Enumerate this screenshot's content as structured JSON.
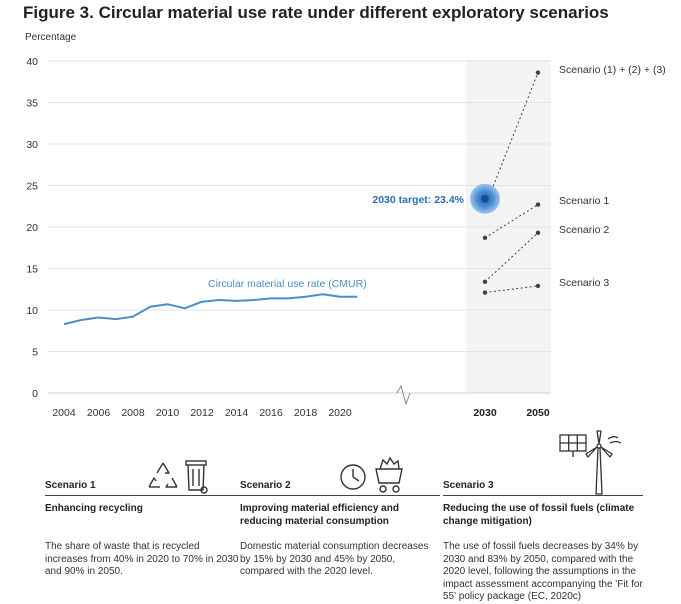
{
  "figure_title": "Figure 3. Circular material use rate under different exploratory scenarios",
  "chart_data": {
    "type": "line",
    "title": "Figure 3. Circular material use rate under different exploratory scenarios",
    "ylabel": "Percentage",
    "ylim": [
      0,
      40
    ],
    "yticks": [
      0,
      5,
      10,
      15,
      20,
      25,
      30,
      35,
      40
    ],
    "historical": {
      "name": "Circular material use rate (CMUR)",
      "color": "#4a90c4",
      "x": [
        2004,
        2005,
        2006,
        2007,
        2008,
        2009,
        2010,
        2011,
        2012,
        2013,
        2014,
        2015,
        2016,
        2017,
        2018,
        2019,
        2020,
        2021
      ],
      "y": [
        8.3,
        8.8,
        9.1,
        8.9,
        9.2,
        10.4,
        10.7,
        10.2,
        11.0,
        11.2,
        11.1,
        11.2,
        11.4,
        11.4,
        11.6,
        11.9,
        11.6,
        11.6
      ]
    },
    "hist_xticks": [
      "2004",
      "2006",
      "2008",
      "2010",
      "2012",
      "2014",
      "2016",
      "2018",
      "2020"
    ],
    "proj_xticks": [
      "2030",
      "2050"
    ],
    "scenarios": [
      {
        "name": "Scenario (1) + (2) + (3)",
        "y2030": 22.4,
        "y2050": 38.6
      },
      {
        "name": "Scenario 1",
        "y2030": 18.7,
        "y2050": 22.7
      },
      {
        "name": "Scenario 2",
        "y2030": 13.4,
        "y2050": 19.3
      },
      {
        "name": "Scenario 3",
        "y2030": 12.1,
        "y2050": 12.9
      }
    ],
    "target": {
      "label": "2030 target: 23.4%",
      "year": 2030,
      "value": 23.4
    }
  },
  "cards": [
    {
      "name": "Scenario 1",
      "subtitle": "Enhancing recycling",
      "body": "The share of waste that is recycled increases from 40% in 2020 to 70% in 2030 and 90% in 2050."
    },
    {
      "name": "Scenario 2",
      "subtitle": "Improving material efficiency and reducing material consumption",
      "body": "Domestic material consumption decreases by 15% by 2030 and 45% by 2050, compared with the 2020 level."
    },
    {
      "name": "Scenario 3",
      "subtitle": "Reducing the use of fossil fuels (climate change mitigation)",
      "body": "The use of fossil fuels decreases by 34% by 2030 and 83% by 2050, compared with the 2020 level, following the assumptions in the impact assessment accompanying the 'Fit for 55' policy package (EC, 2020c)"
    }
  ],
  "icons": [
    "recycle-icon",
    "bin-icon",
    "clock-icon",
    "cart-icon",
    "wind-turbine-icon",
    "solar-panel-icon"
  ]
}
